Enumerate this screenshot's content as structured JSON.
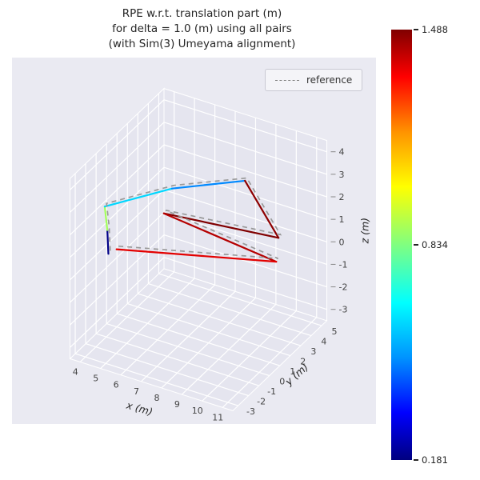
{
  "chart_data": {
    "type": "line",
    "projection": "3d",
    "title_lines": [
      "RPE w.r.t. translation part (m)",
      "for delta = 1.0 (m) using all pairs",
      "(with Sim(3) Umeyama alignment)"
    ],
    "axes": {
      "xlabel": "x (m)",
      "ylabel": "y (m)",
      "zlabel": "z (m)",
      "xlim": [
        3.5,
        11.5
      ],
      "ylim": [
        -3.5,
        5.5
      ],
      "zlim": [
        -3.5,
        4.5
      ],
      "x_ticks": [
        4,
        5,
        6,
        7,
        8,
        9,
        10,
        11
      ],
      "y_ticks": [
        -3,
        -2,
        -1,
        0,
        1,
        2,
        3,
        4,
        5
      ],
      "z_ticks": [
        -3,
        -2,
        -1,
        0,
        1,
        2,
        3,
        4
      ],
      "grid": true
    },
    "legend": [
      {
        "label": "reference",
        "line_style": "dashed",
        "color": "#7f7f7f"
      }
    ],
    "colorbar": {
      "cmap": "jet",
      "vmin": 0.181,
      "vmax": 1.488,
      "ticks": [
        "1.488",
        "0.834",
        "0.181"
      ]
    },
    "series": [
      {
        "name": "estimate-colored-by-rpe",
        "points": [
          [
            4.0,
            -0.8,
            0.1
          ],
          [
            4.0,
            -0.9,
            1.2
          ],
          [
            3.95,
            -1.05,
            2.3
          ],
          [
            6.0,
            1.4,
            2.6
          ],
          [
            8.3,
            3.9,
            2.5
          ],
          [
            10.0,
            3.8,
            0.5
          ],
          [
            5.7,
            1.2,
            1.5
          ],
          [
            10.4,
            2.8,
            0.0
          ],
          [
            4.3,
            -0.6,
            0.3
          ]
        ],
        "segment_values": [
          0.19,
          0.88,
          0.62,
          0.52,
          1.47,
          1.488,
          1.42,
          1.36
        ]
      },
      {
        "name": "reference",
        "points": [
          [
            4.05,
            -0.72,
            0.22
          ],
          [
            4.05,
            -0.82,
            1.32
          ],
          [
            4.0,
            -0.97,
            2.42
          ],
          [
            6.05,
            1.48,
            2.72
          ],
          [
            8.35,
            3.98,
            2.6
          ],
          [
            10.05,
            3.88,
            0.62
          ],
          [
            5.75,
            1.28,
            1.62
          ],
          [
            10.45,
            2.88,
            0.12
          ],
          [
            4.35,
            -0.52,
            0.42
          ]
        ]
      }
    ],
    "colors": {
      "axes_background": "#eaeaf2",
      "pane": "#e5e5ef",
      "grid": "#ffffff",
      "reference": "#999999",
      "tick_text": "#444444",
      "text": "#262626"
    }
  }
}
